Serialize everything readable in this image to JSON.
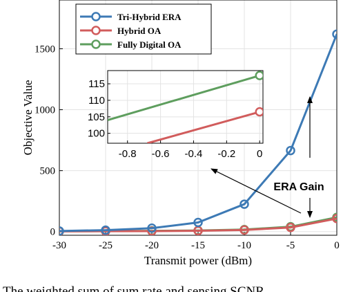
{
  "chart_data": {
    "type": "line",
    "x": [
      -30,
      -25,
      -20,
      -15,
      -10,
      -5,
      0
    ],
    "xlabel": "Transmit power (dBm)",
    "ylabel": "Objective Value",
    "xlim": [
      -30,
      0
    ],
    "ylim": [
      -30,
      1900
    ],
    "xticks": [
      -30,
      -25,
      -20,
      -15,
      -10,
      -5,
      0
    ],
    "yticks": [
      0,
      500,
      1000,
      1500
    ],
    "grid": true,
    "legend": "top-left",
    "series": [
      {
        "name": "Tri-Hybrid ERA",
        "color": "#3d7ab5",
        "values": [
          5,
          12,
          28,
          75,
          225,
          665,
          1620
        ]
      },
      {
        "name": "Hybrid OA",
        "color": "#d15c5c",
        "values": [
          2,
          3,
          4,
          7,
          13,
          34,
          107
        ]
      },
      {
        "name": "Fully Digital OA",
        "color": "#5e9e5e",
        "values": [
          3,
          4,
          6,
          9,
          17,
          40,
          117
        ]
      }
    ],
    "annotation": "ERA Gain",
    "inset": {
      "xlim": [
        -0.92,
        0.02
      ],
      "ylim": [
        97,
        119
      ],
      "xticks": [
        -0.8,
        -0.6,
        -0.4,
        -0.2,
        0
      ],
      "yticks": [
        100,
        105,
        110,
        115
      ],
      "series": [
        {
          "name": "Hybrid OA",
          "x": [
            -0.68,
            0
          ],
          "values": [
            97,
            106.5
          ]
        },
        {
          "name": "Fully Digital OA",
          "x": [
            -0.92,
            0
          ],
          "values": [
            104,
            117.5
          ]
        }
      ]
    }
  },
  "caption": "The weighted sum of sum rate and sensing SCNR"
}
